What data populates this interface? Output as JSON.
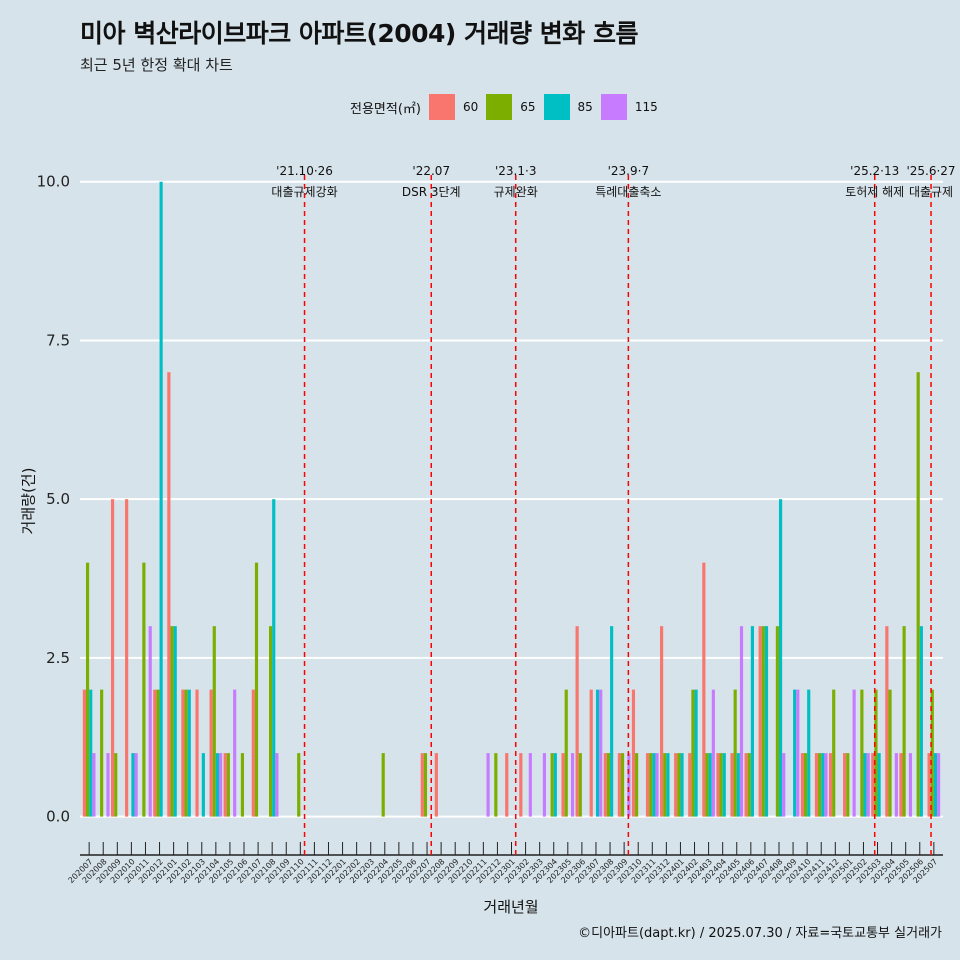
{
  "header": {
    "title": "미아 벽산라이브파크 아파트(2004) 거래량 변화 흐름",
    "subtitle": "최근 5년 한정 확대 차트",
    "caption": "©디아파트(dapt.kr) / 2025.07.30 / 자료=국토교통부 실거래가"
  },
  "legend": {
    "title": "전용면적(㎡)",
    "items": [
      {
        "label": "60",
        "color": "#f8766d"
      },
      {
        "label": "65",
        "color": "#7cae00"
      },
      {
        "label": "85",
        "color": "#00bfc4"
      },
      {
        "label": "115",
        "color": "#c77cff"
      }
    ]
  },
  "chart_data": {
    "type": "bar",
    "title": "미아 벽산라이브파크 아파트(2004) 거래량 변화 흐름",
    "xlabel": "거래년월",
    "ylabel": "거래량(건)",
    "ylim": [
      -0.4,
      10.5
    ],
    "yticks": [
      0.0,
      2.5,
      5.0,
      7.5,
      10.0
    ],
    "ytick_labels": [
      "0.0",
      "2.5",
      "5.0",
      "7.5",
      "10.0"
    ],
    "grid": true,
    "categories": [
      "202007",
      "202008",
      "202009",
      "202010",
      "202011",
      "202012",
      "202101",
      "202102",
      "202103",
      "202104",
      "202105",
      "202106",
      "202107",
      "202108",
      "202109",
      "202110",
      "202111",
      "202112",
      "202201",
      "202202",
      "202203",
      "202204",
      "202205",
      "202206",
      "202207",
      "202208",
      "202209",
      "202210",
      "202211",
      "202212",
      "202301",
      "202302",
      "202303",
      "202304",
      "202305",
      "202306",
      "202307",
      "202308",
      "202309",
      "202310",
      "202311",
      "202312",
      "202401",
      "202402",
      "202403",
      "202404",
      "202405",
      "202406",
      "202407",
      "202408",
      "202409",
      "202410",
      "202411",
      "202412",
      "202501",
      "202502",
      "202503",
      "202504",
      "202505",
      "202506",
      "202507"
    ],
    "series": [
      {
        "name": "60",
        "color": "#f8766d",
        "values": [
          2,
          0,
          5,
          5,
          0,
          2,
          7,
          2,
          2,
          2,
          1,
          0,
          2,
          0,
          0,
          0,
          0,
          0,
          0,
          0,
          0,
          0,
          0,
          0,
          1,
          1,
          0,
          0,
          0,
          0,
          1,
          1,
          0,
          0,
          1,
          3,
          2,
          1,
          1,
          2,
          1,
          3,
          1,
          1,
          4,
          1,
          1,
          1,
          3,
          0,
          0,
          1,
          1,
          1,
          1,
          0,
          1,
          3,
          1,
          0,
          1
        ]
      },
      {
        "name": "65",
        "color": "#7cae00",
        "values": [
          4,
          2,
          1,
          0,
          4,
          2,
          3,
          2,
          0,
          3,
          1,
          1,
          4,
          3,
          0,
          1,
          0,
          0,
          0,
          0,
          0,
          1,
          0,
          0,
          1,
          0,
          0,
          0,
          0,
          1,
          0,
          0,
          0,
          1,
          2,
          1,
          0,
          1,
          1,
          1,
          1,
          1,
          1,
          2,
          1,
          1,
          2,
          1,
          3,
          3,
          0,
          1,
          1,
          2,
          1,
          2,
          2,
          2,
          3,
          7,
          2
        ]
      },
      {
        "name": "85",
        "color": "#00bfc4",
        "values": [
          2,
          0,
          0,
          1,
          0,
          10,
          3,
          2,
          1,
          1,
          0,
          0,
          0,
          5,
          0,
          0,
          0,
          0,
          0,
          0,
          0,
          0,
          0,
          0,
          0,
          0,
          0,
          0,
          0,
          0,
          0,
          0,
          0,
          1,
          0,
          0,
          2,
          3,
          0,
          0,
          1,
          1,
          1,
          2,
          1,
          1,
          1,
          3,
          3,
          5,
          2,
          2,
          1,
          0,
          0,
          1,
          1,
          0,
          0,
          3,
          1
        ]
      },
      {
        "name": "115",
        "color": "#c77cff",
        "values": [
          1,
          1,
          0,
          1,
          3,
          0,
          0,
          0,
          0,
          1,
          2,
          0,
          0,
          1,
          0,
          0,
          0,
          0,
          0,
          0,
          0,
          0,
          0,
          0,
          0,
          0,
          0,
          0,
          1,
          0,
          0,
          1,
          1,
          0,
          1,
          0,
          2,
          0,
          1,
          0,
          1,
          0,
          0,
          0,
          2,
          0,
          3,
          0,
          0,
          1,
          2,
          0,
          1,
          0,
          2,
          1,
          0,
          1,
          1,
          0,
          1
        ]
      }
    ],
    "events": [
      {
        "date": "'21.10·26",
        "label": "대출규제강화",
        "index": 15.8
      },
      {
        "date": "'22.07",
        "label": "DSR 3단계",
        "index": 24.8
      },
      {
        "date": "'23.1·3",
        "label": "규제완화",
        "index": 30.8
      },
      {
        "date": "'23.9·7",
        "label": "특례대출축소",
        "index": 38.8
      },
      {
        "date": "'25.2·13",
        "label": "토허제 해제",
        "index": 56.3
      },
      {
        "date": "'25.6·27",
        "label": "대출규제",
        "index": 60.3
      }
    ]
  }
}
